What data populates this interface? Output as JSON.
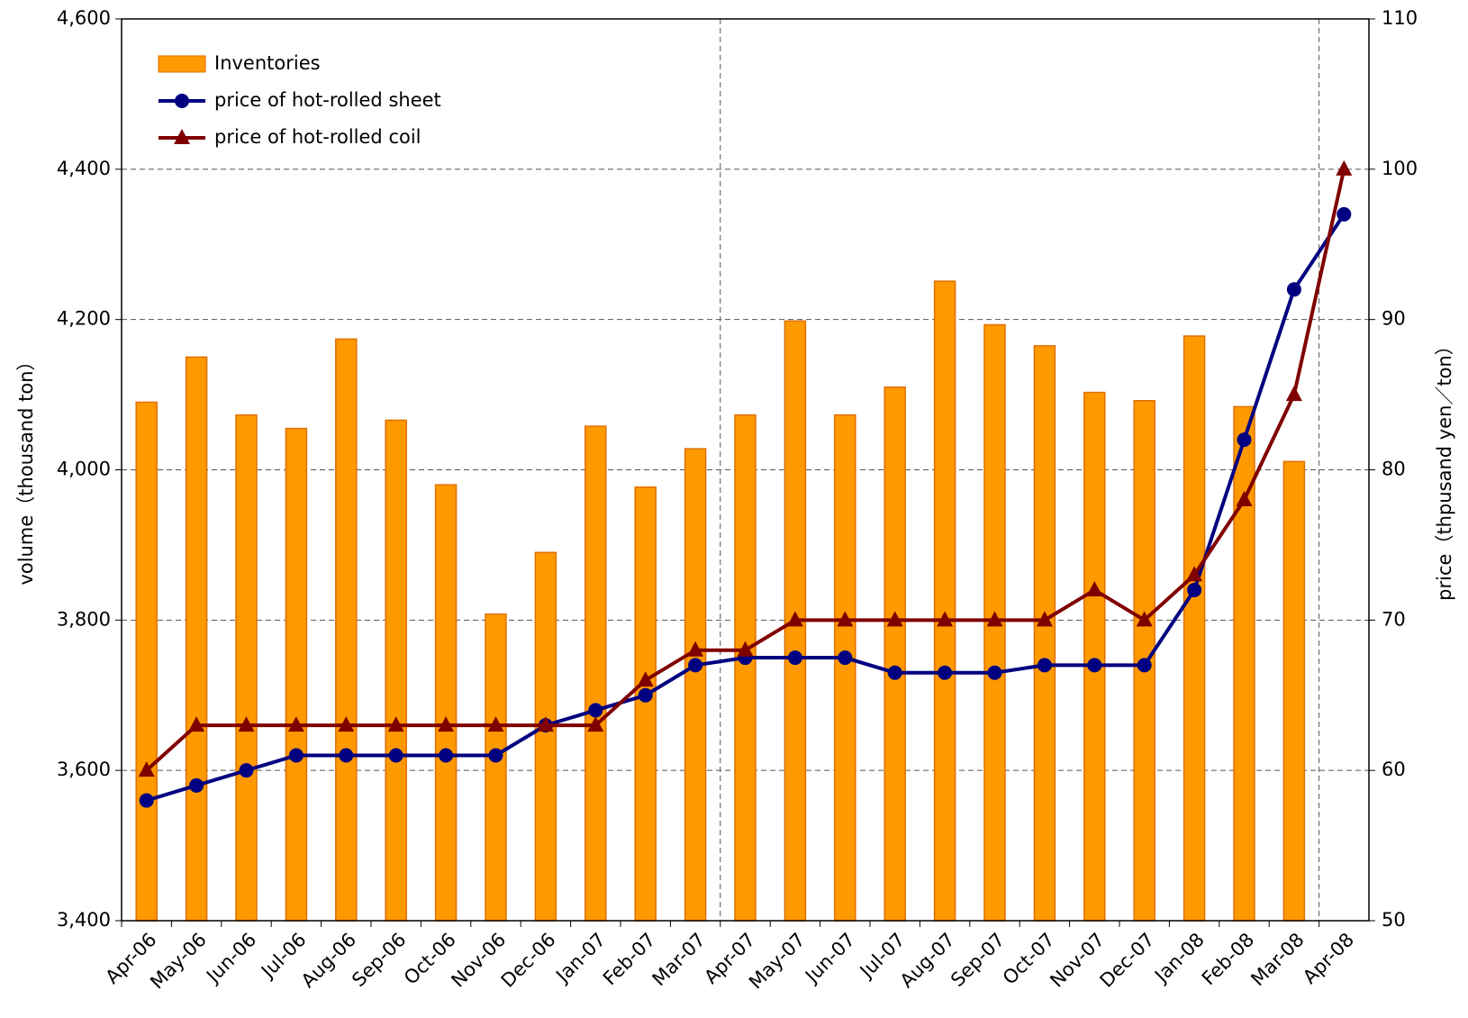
{
  "chart_data": {
    "type": "bar-line",
    "categories": [
      "Apr-06",
      "May-06",
      "Jun-06",
      "Jul-06",
      "Aug-06",
      "Sep-06",
      "Oct-06",
      "Nov-06",
      "Dec-06",
      "Jan-07",
      "Feb-07",
      "Mar-07",
      "Apr-07",
      "May-07",
      "Jun-07",
      "Jul-07",
      "Aug-07",
      "Sep-07",
      "Oct-07",
      "Nov-07",
      "Dec-07",
      "Jan-08",
      "Feb-08",
      "Mar-08",
      "Apr-08"
    ],
    "series": [
      {
        "name": "Inventories",
        "type": "bar",
        "color": "#ff9900",
        "values": [
          4090,
          4150,
          4073,
          4055,
          4174,
          4066,
          3980,
          3808,
          3890,
          4058,
          3977,
          4028,
          4073,
          4198,
          4073,
          4110,
          4251,
          4193,
          4165,
          4103,
          4092,
          4178,
          4084,
          4011,
          null
        ]
      },
      {
        "name": "price of hot-rolled sheet",
        "type": "line",
        "marker": "circle",
        "axis": "y2",
        "color": "#000080",
        "values": [
          58,
          59,
          60,
          61,
          61,
          61,
          61,
          61,
          63,
          64,
          65,
          67,
          67.5,
          67.5,
          67.5,
          66.5,
          66.5,
          66.5,
          67,
          67,
          67,
          72,
          82,
          92,
          97
        ]
      },
      {
        "name": "price of hot-rolled coil",
        "type": "line",
        "marker": "triangle",
        "axis": "y2",
        "color": "#800000",
        "values": [
          60,
          63,
          63,
          63,
          63,
          63,
          63,
          63,
          63,
          63,
          66,
          68,
          68,
          70,
          70,
          70,
          70,
          70,
          70,
          72,
          70,
          73,
          78,
          85,
          100
        ]
      }
    ],
    "ylabel": "volume（thousand ton）",
    "y2label": "price（thpusand yen／ton）",
    "ylim": [
      3400,
      4600
    ],
    "yticks": [
      {
        "value": 3400,
        "label": "3,400"
      },
      {
        "value": 3600,
        "label": "3,600"
      },
      {
        "value": 3800,
        "label": "3,800"
      },
      {
        "value": 4000,
        "label": "4,000"
      },
      {
        "value": 4200,
        "label": "4,200"
      },
      {
        "value": 4400,
        "label": "4,400"
      },
      {
        "value": 4600,
        "label": "4,600"
      }
    ],
    "y2lim": [
      50,
      110
    ],
    "y2ticks": [
      50,
      60,
      70,
      80,
      90,
      100,
      110
    ],
    "grid": true,
    "legend": "upper left"
  }
}
